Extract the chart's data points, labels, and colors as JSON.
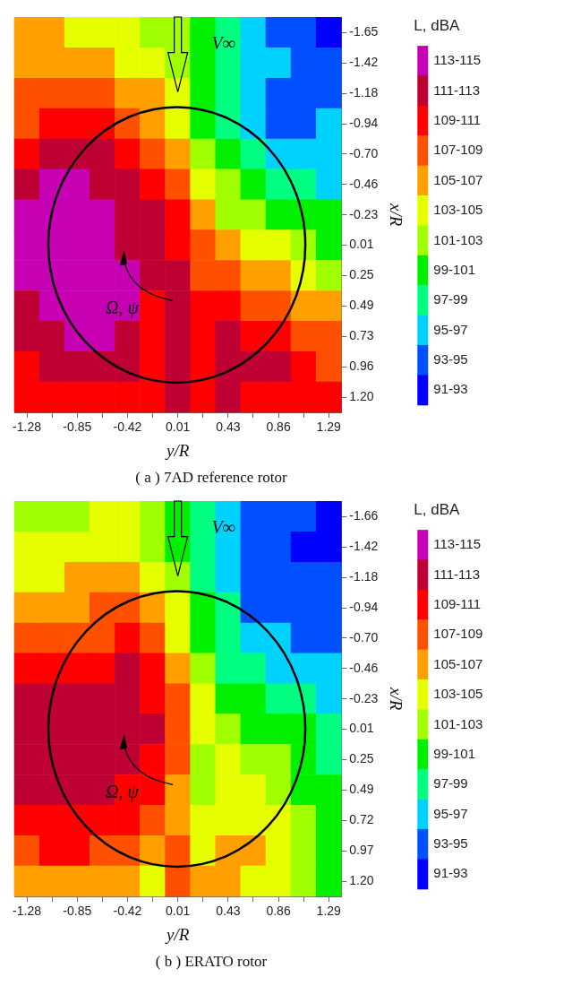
{
  "chart_data": [
    {
      "type": "heatmap",
      "title": "( a ) 7AD reference rotor",
      "xlabel": "y/R",
      "ylabel": "x/R",
      "clabel": "L, dBA",
      "annotations": [
        "V∞",
        "Ω, ψ"
      ],
      "categories": [
        "-1.28",
        null,
        "-0.85",
        null,
        "-0.42",
        null,
        "0.01",
        null,
        "0.43",
        null,
        "0.86",
        null,
        "1.29"
      ],
      "y_categories": [
        "-1.65",
        "-1.42",
        "-1.18",
        "-0.94",
        "-0.70",
        "-0.46",
        "-0.23",
        "0.01",
        "0.25",
        "0.49",
        "0.73",
        "0.96",
        "1.20"
      ],
      "clim": [
        115,
        91
      ],
      "cells": [
        [
          106,
          106,
          104,
          104,
          104,
          102,
          102,
          100,
          98,
          96,
          94,
          94,
          92
        ],
        [
          106,
          106,
          106,
          106,
          104,
          104,
          102,
          100,
          98,
          96,
          96,
          94,
          94
        ],
        [
          108,
          108,
          108,
          108,
          106,
          106,
          104,
          100,
          98,
          96,
          94,
          94,
          94
        ],
        [
          108,
          110,
          110,
          110,
          108,
          106,
          104,
          100,
          98,
          96,
          94,
          94,
          96
        ],
        [
          110,
          112,
          112,
          112,
          110,
          108,
          106,
          102,
          100,
          98,
          96,
          96,
          96
        ],
        [
          112,
          114,
          114,
          112,
          112,
          110,
          108,
          104,
          102,
          100,
          98,
          98,
          96
        ],
        [
          114,
          114,
          114,
          114,
          112,
          112,
          110,
          106,
          102,
          102,
          100,
          100,
          100
        ],
        [
          114,
          114,
          114,
          114,
          112,
          112,
          110,
          108,
          106,
          104,
          104,
          102,
          100
        ],
        [
          114,
          114,
          114,
          114,
          114,
          112,
          112,
          108,
          108,
          106,
          106,
          104,
          102
        ],
        [
          112,
          114,
          114,
          114,
          114,
          110,
          112,
          110,
          110,
          108,
          108,
          106,
          106
        ],
        [
          112,
          112,
          114,
          114,
          112,
          110,
          112,
          110,
          112,
          110,
          110,
          108,
          108
        ],
        [
          110,
          112,
          112,
          112,
          112,
          110,
          112,
          110,
          112,
          112,
          112,
          110,
          108
        ],
        [
          110,
          110,
          110,
          110,
          110,
          110,
          112,
          110,
          112,
          110,
          110,
          110,
          110
        ]
      ],
      "cticks": [
        {
          "value": 114,
          "label": "113-115"
        },
        {
          "value": 112,
          "label": "111-113"
        },
        {
          "value": 110,
          "label": "109-111"
        },
        {
          "value": 108,
          "label": "107-109"
        },
        {
          "value": 106,
          "label": "105-107"
        },
        {
          "value": 104,
          "label": "103-105"
        },
        {
          "value": 102,
          "label": "101-103"
        },
        {
          "value": 100,
          "label": "99-101"
        },
        {
          "value": 98,
          "label": "97-99"
        },
        {
          "value": 96,
          "label": "95-97"
        },
        {
          "value": 94,
          "label": "93-95"
        },
        {
          "value": 92,
          "label": "91-93"
        }
      ],
      "colors": [
        "#c800b4",
        "#be0032",
        "#ff0000",
        "#ff5000",
        "#ffa000",
        "#e6ff00",
        "#a0ff00",
        "#00f000",
        "#00ff80",
        "#00d2ff",
        "#0050ff",
        "#0000ff"
      ]
    },
    {
      "type": "heatmap",
      "title": "( b ) ERATO rotor",
      "xlabel": "y/R",
      "ylabel": "x/R",
      "clabel": "L, dBA",
      "annotations": [
        "V∞",
        "Ω, ψ"
      ],
      "categories": [
        "-1.28",
        null,
        "-0.85",
        null,
        "-0.42",
        null,
        "0.01",
        null,
        "0.43",
        null,
        "0.86",
        null,
        "1.29"
      ],
      "y_categories": [
        "-1.66",
        "-1.42",
        "-1.18",
        "-0.94",
        "-0.70",
        "-0.46",
        "-0.23",
        "0.01",
        "0.25",
        "0.49",
        "0.72",
        "0.97",
        "1.20"
      ],
      "clim": [
        115,
        91
      ],
      "cells": [
        [
          102,
          102,
          102,
          104,
          104,
          102,
          100,
          98,
          96,
          94,
          94,
          94,
          92
        ],
        [
          104,
          104,
          104,
          104,
          104,
          102,
          100,
          98,
          96,
          94,
          94,
          92,
          92
        ],
        [
          104,
          104,
          106,
          106,
          106,
          104,
          102,
          98,
          96,
          94,
          94,
          94,
          94
        ],
        [
          106,
          106,
          106,
          108,
          108,
          106,
          104,
          100,
          98,
          94,
          94,
          94,
          94
        ],
        [
          108,
          108,
          108,
          108,
          110,
          108,
          104,
          100,
          98,
          96,
          96,
          94,
          94
        ],
        [
          110,
          110,
          110,
          110,
          112,
          110,
          106,
          102,
          98,
          98,
          96,
          96,
          96
        ],
        [
          112,
          112,
          112,
          112,
          112,
          110,
          108,
          104,
          100,
          100,
          98,
          98,
          96
        ],
        [
          112,
          112,
          112,
          112,
          112,
          112,
          108,
          104,
          102,
          100,
          100,
          100,
          98
        ],
        [
          112,
          112,
          112,
          112,
          112,
          110,
          108,
          102,
          104,
          102,
          102,
          100,
          98
        ],
        [
          112,
          112,
          112,
          112,
          110,
          110,
          106,
          102,
          104,
          104,
          102,
          100,
          100
        ],
        [
          110,
          110,
          110,
          110,
          110,
          108,
          106,
          104,
          104,
          104,
          104,
          102,
          100
        ],
        [
          108,
          110,
          110,
          108,
          108,
          106,
          108,
          104,
          106,
          106,
          104,
          102,
          100
        ],
        [
          106,
          106,
          106,
          106,
          106,
          104,
          108,
          106,
          106,
          104,
          104,
          102,
          100
        ]
      ],
      "cticks": [
        {
          "value": 114,
          "label": "113-115"
        },
        {
          "value": 112,
          "label": "111-113"
        },
        {
          "value": 110,
          "label": "109-111"
        },
        {
          "value": 108,
          "label": "107-109"
        },
        {
          "value": 106,
          "label": "105-107"
        },
        {
          "value": 104,
          "label": "103-105"
        },
        {
          "value": 102,
          "label": "101-103"
        },
        {
          "value": 100,
          "label": "99-101"
        },
        {
          "value": 98,
          "label": "97-99"
        },
        {
          "value": 96,
          "label": "95-97"
        },
        {
          "value": 94,
          "label": "93-95"
        },
        {
          "value": 92,
          "label": "91-93"
        }
      ],
      "colors": [
        "#c800b4",
        "#be0032",
        "#ff0000",
        "#ff5000",
        "#ffa000",
        "#e6ff00",
        "#a0ff00",
        "#00f000",
        "#00ff80",
        "#00d2ff",
        "#0050ff",
        "#0000ff"
      ]
    }
  ]
}
